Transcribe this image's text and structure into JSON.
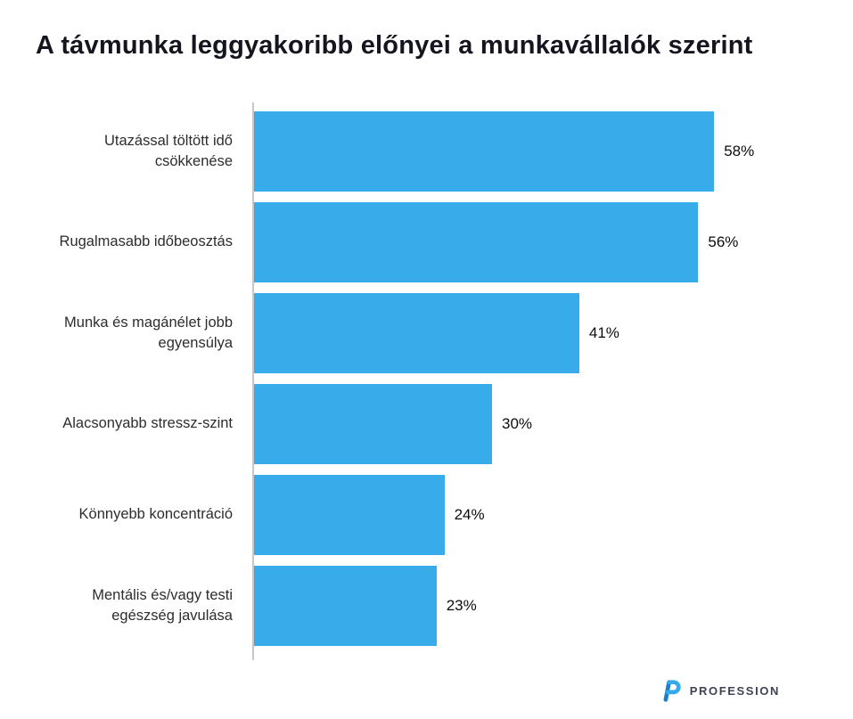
{
  "chart_data": {
    "type": "bar",
    "orientation": "horizontal",
    "title": "A távmunka leggyakoribb előnyei a munkavállalók szerint",
    "categories": [
      "Utazással töltött idő csökkenése",
      "Rugalmasabb időbeosztás",
      "Munka és magánélet jobb egyensúlya",
      "Alacsonyabb stressz-szint",
      "Könnyebb koncentráció",
      "Mentális és/vagy testi egészség javulása"
    ],
    "values": [
      58,
      56,
      41,
      30,
      24,
      23
    ],
    "value_labels": [
      "58%",
      "56%",
      "41%",
      "30%",
      "24%",
      "23%"
    ],
    "xlim": [
      0,
      65
    ],
    "xlabel": "",
    "ylabel": "",
    "grid": false,
    "legend": false,
    "bar_color": "#38abea",
    "axis_line_color": "#c7c7c7"
  },
  "footer": {
    "brand": "PROFESSION",
    "logo_stem_color": "#1580cc",
    "logo_bowl_color": "#35a9ea"
  }
}
